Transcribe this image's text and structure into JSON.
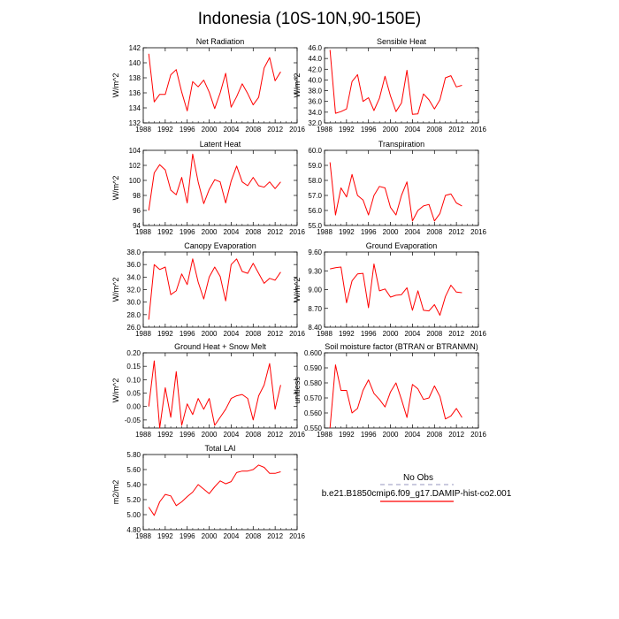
{
  "figure": {
    "title": "Indonesia (10S-10N,90-150E)"
  },
  "legend": {
    "entries": [
      {
        "label": "No Obs",
        "color": "#aaaacc",
        "dashed": true
      },
      {
        "label": "b.e21.B1850cmip6.f09_g17.DAMIP-hist-co2.001",
        "color": "#ff0000",
        "dashed": false
      }
    ]
  },
  "colors": {
    "model_line": "#ff0000",
    "obs_line": "#aaaacc",
    "axis": "#000000"
  },
  "chart_data": [
    {
      "type": "line",
      "title": "Net Radiation",
      "ylabel": "W/m^2",
      "xlim": [
        1988,
        2016
      ],
      "xticks": [
        1988,
        1992,
        1996,
        2000,
        2004,
        2008,
        2012,
        2016
      ],
      "ylim": [
        132,
        142
      ],
      "yticks": [
        132,
        134,
        136,
        138,
        140,
        142
      ],
      "ytick_labels": [
        "132",
        "134",
        "136",
        "138",
        "140",
        "142"
      ],
      "series": [
        {
          "x": [
            1989,
            1990,
            1991,
            1992,
            1993,
            1994,
            1995,
            1996,
            1997,
            1998,
            1999,
            2000,
            2001,
            2002,
            2003,
            2004,
            2005,
            2006,
            2007,
            2008,
            2009,
            2010,
            2011,
            2012,
            2013,
            2014
          ],
          "values": [
            141.2,
            134.8,
            135.8,
            135.8,
            138.4,
            139.1,
            136.1,
            133.6,
            137.5,
            136.8,
            137.7,
            136.1,
            133.9,
            136.0,
            138.6,
            134.1,
            135.5,
            137.2,
            135.9,
            134.4,
            135.4,
            139.3,
            140.7,
            137.6,
            138.8,
            null
          ]
        }
      ]
    },
    {
      "type": "line",
      "title": "Sensible Heat",
      "ylabel": "W/m^2",
      "xlim": [
        1988,
        2016
      ],
      "xticks": [
        1988,
        1992,
        1996,
        2000,
        2004,
        2008,
        2012,
        2016
      ],
      "ylim": [
        32,
        46
      ],
      "yticks": [
        32,
        34,
        36,
        38,
        40,
        42,
        44,
        46
      ],
      "ytick_labels": [
        "32.0",
        "34.0",
        "36.0",
        "38.0",
        "40.0",
        "42.0",
        "44.0",
        "46.0"
      ],
      "series": [
        {
          "x": [
            1989,
            1990,
            1991,
            1992,
            1993,
            1994,
            1995,
            1996,
            1997,
            1998,
            1999,
            2000,
            2001,
            2002,
            2003,
            2004,
            2005,
            2006,
            2007,
            2008,
            2009,
            2010,
            2011,
            2012,
            2013,
            2014
          ],
          "values": [
            45.6,
            33.8,
            34.1,
            34.6,
            39.7,
            41.0,
            36.0,
            36.7,
            34.3,
            36.6,
            40.7,
            37.0,
            34.1,
            35.7,
            41.8,
            33.6,
            33.7,
            37.4,
            36.3,
            34.6,
            36.3,
            40.4,
            40.8,
            38.7,
            39.0,
            null
          ]
        }
      ]
    },
    {
      "type": "line",
      "title": "Latent Heat",
      "ylabel": "W/m^2",
      "xlim": [
        1988,
        2016
      ],
      "xticks": [
        1988,
        1992,
        1996,
        2000,
        2004,
        2008,
        2012,
        2016
      ],
      "ylim": [
        94,
        104
      ],
      "yticks": [
        94,
        96,
        98,
        100,
        102,
        104
      ],
      "ytick_labels": [
        "94",
        "96",
        "98",
        "100",
        "102",
        "104"
      ],
      "series": [
        {
          "x": [
            1989,
            1990,
            1991,
            1992,
            1993,
            1994,
            1995,
            1996,
            1997,
            1998,
            1999,
            2000,
            2001,
            2002,
            2003,
            2004,
            2005,
            2006,
            2007,
            2008,
            2009,
            2010,
            2011,
            2012,
            2013,
            2014
          ],
          "values": [
            96.0,
            101.0,
            102.1,
            101.4,
            98.7,
            98.1,
            100.4,
            97.0,
            103.5,
            99.8,
            96.9,
            98.8,
            100.1,
            99.8,
            97.0,
            99.9,
            101.9,
            99.8,
            99.3,
            100.4,
            99.3,
            99.1,
            99.8,
            98.9,
            99.8,
            null
          ]
        }
      ]
    },
    {
      "type": "line",
      "title": "Transpiration",
      "ylabel": "",
      "xlim": [
        1988,
        2016
      ],
      "xticks": [
        1988,
        1992,
        1996,
        2000,
        2004,
        2008,
        2012,
        2016
      ],
      "ylim": [
        55,
        60
      ],
      "yticks": [
        55,
        56,
        57,
        58,
        59,
        60
      ],
      "ytick_labels": [
        "55.0",
        "56.0",
        "57.0",
        "58.0",
        "59.0",
        "60.0"
      ],
      "series": [
        {
          "x": [
            1989,
            1990,
            1991,
            1992,
            1993,
            1994,
            1995,
            1996,
            1997,
            1998,
            1999,
            2000,
            2001,
            2002,
            2003,
            2004,
            2005,
            2006,
            2007,
            2008,
            2009,
            2010,
            2011,
            2012,
            2013,
            2014
          ],
          "values": [
            59.2,
            55.7,
            57.5,
            56.9,
            58.4,
            57.0,
            56.7,
            55.7,
            57.0,
            57.6,
            57.5,
            56.2,
            55.7,
            57.0,
            57.9,
            55.3,
            56.0,
            56.3,
            56.4,
            55.3,
            55.8,
            57.0,
            57.1,
            56.5,
            56.3,
            null
          ]
        }
      ]
    },
    {
      "type": "line",
      "title": "Canopy Evaporation",
      "ylabel": "W/m^2",
      "xlim": [
        1988,
        2016
      ],
      "xticks": [
        1988,
        1992,
        1996,
        2000,
        2004,
        2008,
        2012,
        2016
      ],
      "ylim": [
        26,
        38
      ],
      "yticks": [
        26,
        28,
        30,
        32,
        34,
        36,
        38
      ],
      "ytick_labels": [
        "26.0",
        "28.0",
        "30.0",
        "32.0",
        "34.0",
        "36.0",
        "38.0"
      ],
      "series": [
        {
          "x": [
            1989,
            1990,
            1991,
            1992,
            1993,
            1994,
            1995,
            1996,
            1997,
            1998,
            1999,
            2000,
            2001,
            2002,
            2003,
            2004,
            2005,
            2006,
            2007,
            2008,
            2009,
            2010,
            2011,
            2012,
            2013,
            2014
          ],
          "values": [
            27.2,
            36.0,
            35.2,
            35.6,
            31.2,
            31.8,
            34.5,
            32.8,
            36.9,
            33.2,
            30.5,
            34.0,
            35.6,
            34.1,
            30.2,
            36.0,
            36.9,
            34.9,
            34.6,
            36.2,
            34.6,
            33.0,
            33.8,
            33.5,
            34.8,
            null
          ]
        }
      ]
    },
    {
      "type": "line",
      "title": "Ground Evaporation",
      "ylabel": "W/m^2",
      "xlim": [
        1988,
        2016
      ],
      "xticks": [
        1988,
        1992,
        1996,
        2000,
        2004,
        2008,
        2012,
        2016
      ],
      "ylim": [
        8.4,
        9.6
      ],
      "yticks": [
        8.4,
        8.7,
        9.0,
        9.3,
        9.6
      ],
      "ytick_labels": [
        "8.40",
        "8.70",
        "9.00",
        "9.30",
        "9.60"
      ],
      "series": [
        {
          "x": [
            1989,
            1990,
            1991,
            1992,
            1993,
            1994,
            1995,
            1996,
            1997,
            1998,
            1999,
            2000,
            2001,
            2002,
            2003,
            2004,
            2005,
            2006,
            2007,
            2008,
            2009,
            2010,
            2011,
            2012,
            2013,
            2014
          ],
          "values": [
            9.33,
            9.35,
            9.36,
            8.79,
            9.14,
            9.25,
            9.26,
            8.71,
            9.41,
            8.98,
            9.01,
            8.88,
            8.91,
            8.92,
            9.03,
            8.67,
            8.98,
            8.67,
            8.66,
            8.76,
            8.59,
            8.89,
            9.07,
            8.96,
            8.95,
            null
          ]
        }
      ]
    },
    {
      "type": "line",
      "title": "Ground Heat + Snow Melt",
      "ylabel": "W/m^2",
      "xlim": [
        1988,
        2016
      ],
      "xticks": [
        1988,
        1992,
        1996,
        2000,
        2004,
        2008,
        2012,
        2016
      ],
      "ylim": [
        -0.08,
        0.2
      ],
      "yticks": [
        -0.05,
        0,
        0.05,
        0.1,
        0.15,
        0.2
      ],
      "ytick_labels": [
        "-0.05",
        "0.00",
        "0.05",
        "0.10",
        "0.15",
        "0.20"
      ],
      "series": [
        {
          "x": [
            1989,
            1990,
            1991,
            1992,
            1993,
            1994,
            1995,
            1996,
            1997,
            1998,
            1999,
            2000,
            2001,
            2002,
            2003,
            2004,
            2005,
            2006,
            2007,
            2008,
            2009,
            2010,
            2011,
            2012,
            2013,
            2014
          ],
          "values": [
            0.0,
            0.17,
            -0.08,
            0.07,
            -0.04,
            0.13,
            -0.07,
            0.01,
            -0.03,
            0.03,
            -0.01,
            0.03,
            -0.07,
            -0.04,
            -0.01,
            0.03,
            0.04,
            0.045,
            0.03,
            -0.05,
            0.04,
            0.08,
            0.16,
            -0.01,
            0.08,
            null
          ]
        }
      ]
    },
    {
      "type": "line",
      "title": "Soil moisture factor (BTRAN or BTRANMN)",
      "ylabel": "unitless",
      "xlim": [
        1988,
        2016
      ],
      "xticks": [
        1988,
        1992,
        1996,
        2000,
        2004,
        2008,
        2012,
        2016
      ],
      "ylim": [
        0.55,
        0.6
      ],
      "yticks": [
        0.55,
        0.56,
        0.57,
        0.58,
        0.59,
        0.6
      ],
      "ytick_labels": [
        "0.550",
        "0.560",
        "0.570",
        "0.580",
        "0.590",
        "0.600"
      ],
      "series": [
        {
          "x": [
            1989,
            1990,
            1991,
            1992,
            1993,
            1994,
            1995,
            1996,
            1997,
            1998,
            1999,
            2000,
            2001,
            2002,
            2003,
            2004,
            2005,
            2006,
            2007,
            2008,
            2009,
            2010,
            2011,
            2012,
            2013,
            2014
          ],
          "values": [
            0.55,
            0.592,
            0.575,
            0.575,
            0.56,
            0.563,
            0.575,
            0.582,
            0.573,
            0.569,
            0.564,
            0.574,
            0.58,
            0.569,
            0.557,
            0.579,
            0.576,
            0.569,
            0.57,
            0.578,
            0.571,
            0.556,
            0.558,
            0.563,
            0.557,
            null
          ]
        }
      ]
    },
    {
      "type": "line",
      "title": "Total LAI",
      "ylabel": "m2/m2",
      "xlim": [
        1988,
        2016
      ],
      "xticks": [
        1988,
        1992,
        1996,
        2000,
        2004,
        2008,
        2012,
        2016
      ],
      "ylim": [
        4.8,
        5.8
      ],
      "yticks": [
        4.8,
        5.0,
        5.2,
        5.4,
        5.6,
        5.8
      ],
      "ytick_labels": [
        "4.80",
        "5.00",
        "5.20",
        "5.40",
        "5.60",
        "5.80"
      ],
      "series": [
        {
          "x": [
            1989,
            1990,
            1991,
            1992,
            1993,
            1994,
            1995,
            1996,
            1997,
            1998,
            1999,
            2000,
            2001,
            2002,
            2003,
            2004,
            2005,
            2006,
            2007,
            2008,
            2009,
            2010,
            2011,
            2012,
            2013,
            2014
          ],
          "values": [
            5.1,
            4.99,
            5.17,
            5.27,
            5.25,
            5.12,
            5.17,
            5.24,
            5.3,
            5.4,
            5.34,
            5.28,
            5.37,
            5.45,
            5.41,
            5.44,
            5.56,
            5.58,
            5.58,
            5.6,
            5.66,
            5.63,
            5.55,
            5.55,
            5.57,
            null
          ]
        }
      ]
    }
  ]
}
